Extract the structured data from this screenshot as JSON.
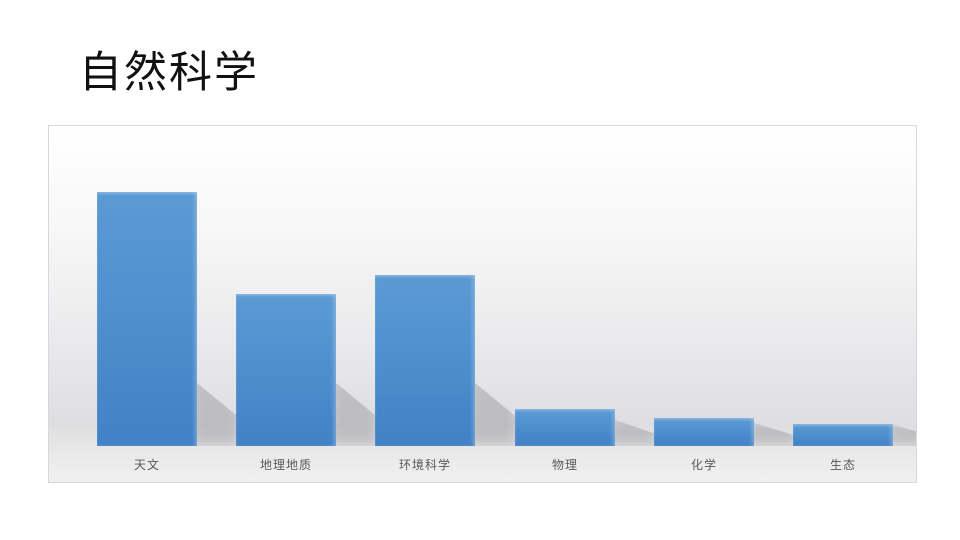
{
  "slide": {
    "title": "自然科学"
  },
  "chart_data": {
    "type": "bar",
    "title": "自然科学",
    "categories": [
      "天文",
      "地理地质",
      "环境科学",
      "物理",
      "化学",
      "生态"
    ],
    "values": [
      82,
      49,
      55,
      12,
      9,
      7
    ],
    "xlabel": "",
    "ylabel": "",
    "ylim": [
      0,
      100
    ],
    "grid": false,
    "legend": "none",
    "value_labels_shown": false,
    "axes_shown": false,
    "colors": {
      "bar_top": "#5b9ad3",
      "bar_bottom": "#4181c5",
      "bar_shadow": "#8f8e93",
      "panel_border": "#d9d6dd",
      "panel_bg_top": "#ffffff",
      "panel_bg_mid": "#dedee0",
      "panel_bg_bottom": "#f0f0f1",
      "category_label": "#595959",
      "title": "#111111"
    }
  }
}
